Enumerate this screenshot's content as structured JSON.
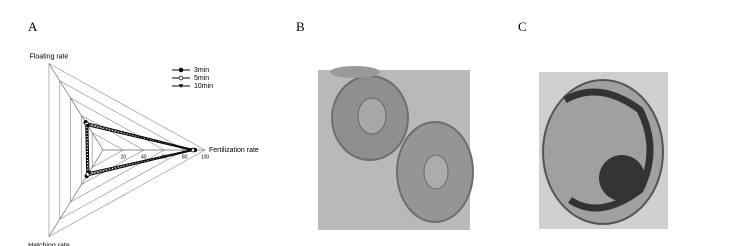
{
  "panels": [
    "A",
    "B",
    "C"
  ],
  "chart_data": {
    "type": "radar",
    "categories": [
      "Floating rate",
      "Fertilization rate",
      "Hatching rate"
    ],
    "rlim": [
      0,
      100
    ],
    "rticks": [
      20,
      40,
      60,
      80,
      100
    ],
    "grid": true,
    "series": [
      {
        "name": "3min",
        "color": "#000000",
        "marker": "filled-circle",
        "values": [
          32,
          90,
          30
        ]
      },
      {
        "name": "5min",
        "color": "#000000",
        "marker": "open-circle",
        "values": [
          30,
          88,
          28
        ]
      },
      {
        "name": "10min",
        "color": "#000000",
        "marker": "triangle-down",
        "values": [
          28,
          86,
          26
        ]
      }
    ]
  }
}
